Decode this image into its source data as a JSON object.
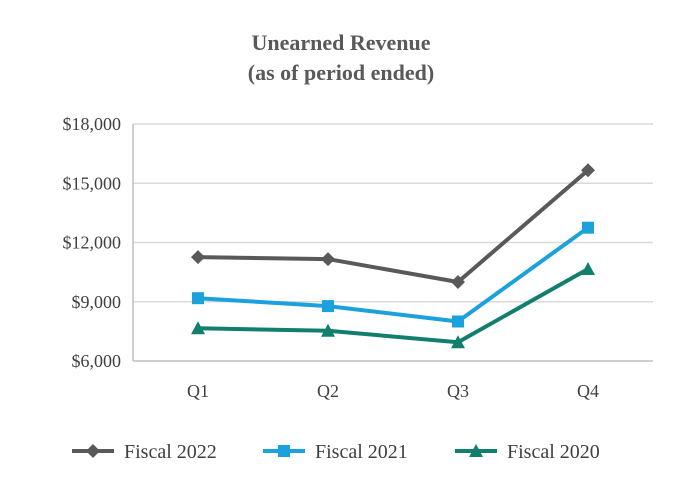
{
  "chart_data": {
    "type": "line",
    "title": "Unearned Revenue",
    "subtitle": "(as of period ended)",
    "categories": [
      "Q1",
      "Q2",
      "Q3",
      "Q4"
    ],
    "ylim": [
      6000,
      18000
    ],
    "yticks": [
      6000,
      9000,
      12000,
      15000,
      18000
    ],
    "ytick_labels": [
      "$6,000",
      "$9,000",
      "$12,000",
      "$15,000",
      "$18,000"
    ],
    "grid": true,
    "legend_position": "bottom",
    "series": [
      {
        "name": "Fiscal 2022",
        "values": [
          11260,
          11160,
          10000,
          15660
        ],
        "color": "#595959",
        "marker": "diamond"
      },
      {
        "name": "Fiscal 2021",
        "values": [
          9180,
          8780,
          8000,
          12750
        ],
        "color": "#1ba1dc",
        "marker": "square"
      },
      {
        "name": "Fiscal 2020",
        "values": [
          7660,
          7530,
          6950,
          10660
        ],
        "color": "#127f6e",
        "marker": "triangle"
      }
    ]
  }
}
